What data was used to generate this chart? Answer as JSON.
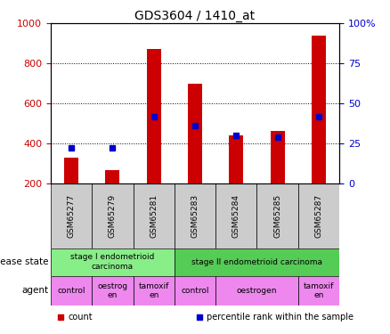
{
  "title": "GDS3604 / 1410_at",
  "samples": [
    "GSM65277",
    "GSM65279",
    "GSM65281",
    "GSM65283",
    "GSM65284",
    "GSM65285",
    "GSM65287"
  ],
  "counts": [
    330,
    265,
    870,
    700,
    440,
    460,
    940
  ],
  "percentile_ranks_left": [
    375,
    375,
    535,
    490,
    440,
    430,
    535
  ],
  "ylim_left": [
    200,
    1000
  ],
  "ylim_right": [
    0,
    100
  ],
  "yticks_left": [
    200,
    400,
    600,
    800,
    1000
  ],
  "yticks_right": [
    0,
    25,
    50,
    75,
    100
  ],
  "bar_color": "#cc0000",
  "dot_color": "#0000cc",
  "bar_bottom": 200,
  "sample_box_color": "#cccccc",
  "disease_state_groups": [
    {
      "label": "stage I endometrioid\ncarcinoma",
      "start": 0,
      "end": 3,
      "color": "#88ee88"
    },
    {
      "label": "stage II endometrioid carcinoma",
      "start": 3,
      "end": 7,
      "color": "#55cc55"
    }
  ],
  "agent_groups": [
    {
      "label": "control",
      "start": 0,
      "end": 1,
      "color": "#ee88ee"
    },
    {
      "label": "oestrog\nen",
      "start": 1,
      "end": 2,
      "color": "#ee88ee"
    },
    {
      "label": "tamoxif\nen",
      "start": 2,
      "end": 3,
      "color": "#ee88ee"
    },
    {
      "label": "control",
      "start": 3,
      "end": 4,
      "color": "#ee88ee"
    },
    {
      "label": "oestrogen",
      "start": 4,
      "end": 6,
      "color": "#ee88ee"
    },
    {
      "label": "tamoxif\nen",
      "start": 6,
      "end": 7,
      "color": "#ee88ee"
    }
  ],
  "grid_color": "#000000",
  "tick_color_left": "#cc0000",
  "tick_color_right": "#0000cc",
  "legend_items": [
    {
      "label": "count",
      "color": "#cc0000"
    },
    {
      "label": "percentile rank within the sample",
      "color": "#0000cc"
    }
  ],
  "arrow_color": "#888888",
  "label_left_text": [
    "disease state",
    "agent"
  ]
}
